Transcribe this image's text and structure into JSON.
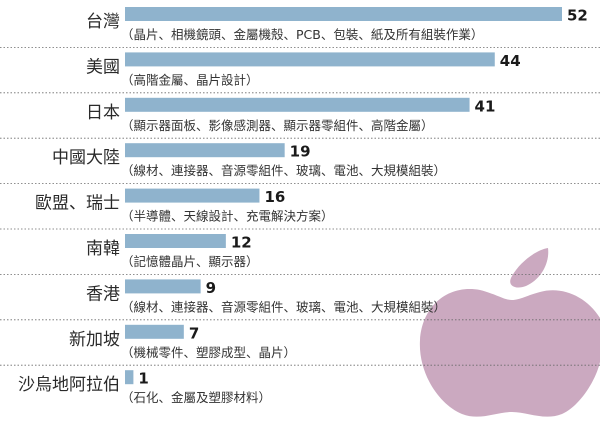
{
  "colors": {
    "bar": "#8fb3cd",
    "apple": "#cba9c0",
    "separator": "#6a6a6a"
  },
  "decoration": {
    "icon": "apple-logo-icon"
  },
  "chart_data": {
    "type": "bar",
    "orientation": "horizontal",
    "title": "",
    "xlabel": "",
    "ylabel": "",
    "xlim": [
      0,
      52
    ],
    "grid": false,
    "categories": [
      "台灣",
      "美國",
      "日本",
      "中國大陸",
      "歐盟、瑞士",
      "南韓",
      "香港",
      "新加坡",
      "沙烏地阿拉伯"
    ],
    "values": [
      52,
      44,
      41,
      19,
      16,
      12,
      9,
      7,
      1
    ],
    "value_labels": [
      "52",
      "44",
      "41",
      "19",
      "16",
      "12",
      "9",
      "7",
      "1"
    ],
    "notes": [
      "（晶片、相機鏡頭、金屬機殼、PCB、包裝、紙及所有組裝作業）",
      "（高階金屬、晶片設計）",
      "（顯示器面板、影像感測器、顯示器零組件、高階金屬）",
      "（線材、連接器、音源零組件、玻璃、電池、大規模組裝）",
      "（半導體、天線設計、充電解決方案）",
      "（記憶體晶片、顯示器）",
      "（線材、連接器、音源零組件、玻璃、電池、大規模組裝）",
      "（機械零件、塑膠成型、晶片）",
      "（石化、金屬及塑膠材料）"
    ]
  }
}
